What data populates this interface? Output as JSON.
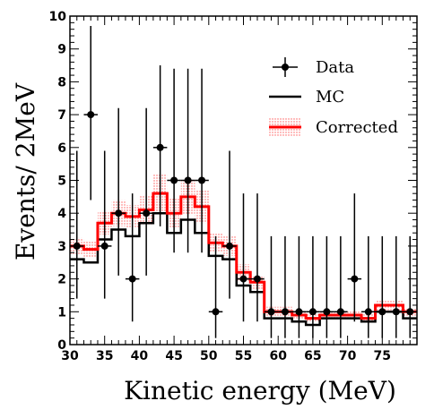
{
  "chart_data": {
    "type": "line",
    "title": "",
    "xlabel": "Kinetic energy (MeV)",
    "ylabel": "Events/ 2MeV",
    "xlim": [
      30,
      80
    ],
    "ylim": [
      0,
      10
    ],
    "x_ticks": [
      30,
      35,
      40,
      45,
      50,
      55,
      60,
      65,
      70,
      75
    ],
    "y_ticks": [
      0,
      1,
      2,
      3,
      4,
      5,
      6,
      7,
      8,
      9,
      10
    ],
    "bin_edges": [
      30,
      32,
      34,
      36,
      38,
      40,
      42,
      44,
      46,
      48,
      50,
      52,
      54,
      56,
      58,
      60,
      62,
      64,
      66,
      68,
      70,
      72,
      74,
      76,
      78,
      80
    ],
    "legend_position": "top-right",
    "series": [
      {
        "name": "Data",
        "style": "points-with-errors",
        "color": "#000000",
        "x": [
          31,
          33,
          35,
          37,
          39,
          41,
          43,
          45,
          47,
          49,
          51,
          53,
          55,
          57,
          59,
          61,
          63,
          65,
          67,
          69,
          71,
          73,
          75,
          77,
          79
        ],
        "y": [
          3,
          7,
          3,
          4,
          2,
          4,
          6,
          5,
          5,
          5,
          1,
          3,
          2,
          2,
          1,
          1,
          1,
          1,
          1,
          1,
          2,
          1,
          1,
          1,
          1
        ],
        "err_low": [
          1.6,
          2.6,
          1.6,
          1.9,
          1.3,
          1.9,
          2.4,
          2.2,
          2.2,
          2.2,
          0.8,
          1.6,
          1.3,
          1.3,
          0.8,
          0.8,
          0.8,
          0.8,
          0.8,
          0.8,
          1.3,
          0.8,
          0.8,
          0.8,
          0.8
        ],
        "err_high": [
          2.9,
          2.7,
          2.9,
          3.2,
          2.6,
          3.2,
          2.5,
          3.4,
          3.4,
          3.4,
          2.3,
          2.9,
          2.6,
          2.6,
          2.3,
          2.3,
          2.3,
          2.3,
          2.3,
          2.3,
          2.6,
          2.3,
          2.3,
          2.3,
          2.3
        ]
      },
      {
        "name": "MC",
        "style": "step",
        "color": "#000000",
        "values": [
          2.6,
          2.5,
          3.2,
          3.5,
          3.3,
          3.7,
          4.0,
          3.4,
          3.8,
          3.4,
          2.7,
          2.6,
          1.8,
          1.6,
          0.8,
          0.8,
          0.7,
          0.6,
          0.8,
          0.8,
          0.8,
          0.7,
          1.0,
          1.0,
          0.8
        ]
      },
      {
        "name": "Corrected",
        "style": "step-with-band",
        "color": "#ff0000",
        "band_color": "#ffaaaa",
        "values": [
          3.0,
          2.9,
          3.7,
          4.0,
          3.9,
          4.1,
          4.6,
          4.0,
          4.5,
          4.2,
          3.1,
          3.0,
          2.2,
          1.9,
          1.0,
          1.0,
          0.9,
          0.8,
          0.9,
          0.9,
          0.9,
          0.8,
          1.2,
          1.2,
          1.0
        ],
        "band_half_width": [
          0.25,
          0.25,
          0.35,
          0.4,
          0.35,
          0.45,
          0.6,
          0.45,
          0.55,
          0.5,
          0.3,
          0.3,
          0.25,
          0.2,
          0.15,
          0.15,
          0.12,
          0.12,
          0.12,
          0.12,
          0.12,
          0.12,
          0.15,
          0.15,
          0.12
        ]
      }
    ]
  }
}
